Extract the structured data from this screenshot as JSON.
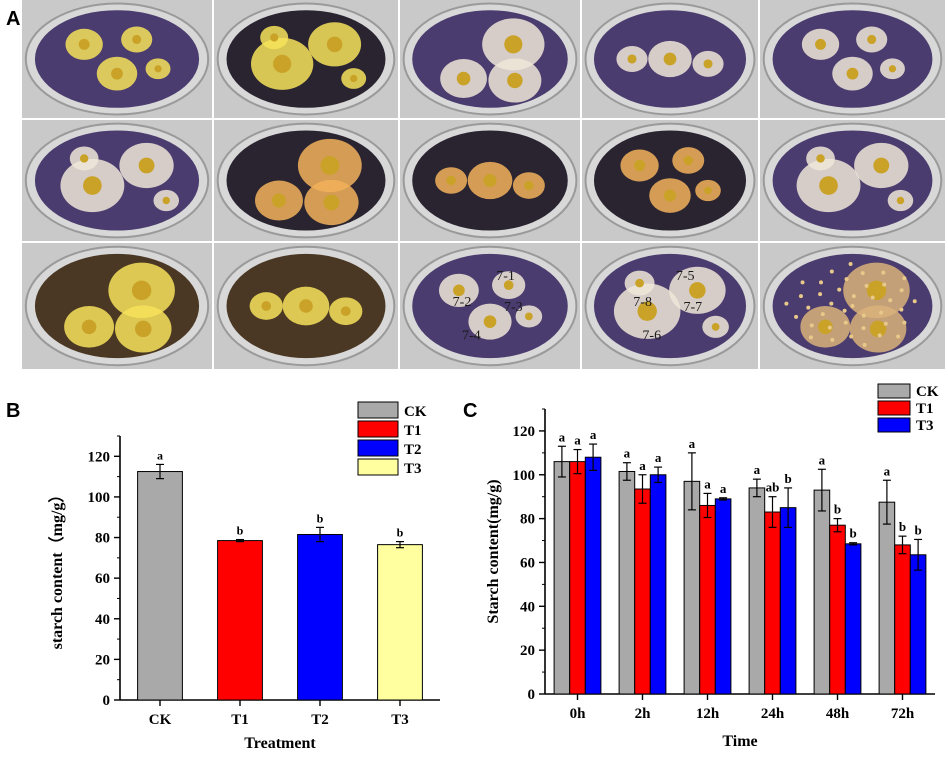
{
  "panels": {
    "a_label": "A",
    "b_label": "B",
    "c_label": "C"
  },
  "plate_photos": [
    {
      "row": 0,
      "col": 0,
      "medium": "purple",
      "halo": "yellow"
    },
    {
      "row": 0,
      "col": 1,
      "medium": "dark",
      "halo": "yellow"
    },
    {
      "row": 0,
      "col": 2,
      "medium": "purple",
      "halo": "pale"
    },
    {
      "row": 0,
      "col": 3,
      "medium": "purple",
      "halo": "pale"
    },
    {
      "row": 0,
      "col": 4,
      "medium": "purple",
      "halo": "pale"
    },
    {
      "row": 1,
      "col": 0,
      "medium": "purple",
      "halo": "pale"
    },
    {
      "row": 1,
      "col": 1,
      "medium": "dark",
      "halo": "orange"
    },
    {
      "row": 1,
      "col": 2,
      "medium": "dark",
      "halo": "orange"
    },
    {
      "row": 1,
      "col": 3,
      "medium": "dark",
      "halo": "orange"
    },
    {
      "row": 1,
      "col": 4,
      "medium": "purple",
      "halo": "pale"
    },
    {
      "row": 2,
      "col": 0,
      "medium": "brown",
      "halo": "yellow"
    },
    {
      "row": 2,
      "col": 1,
      "medium": "brown",
      "halo": "yellow"
    },
    {
      "row": 2,
      "col": 2,
      "medium": "purple",
      "halo": "pale",
      "labels": [
        "7-1",
        "7-2",
        "7-3",
        "7-4"
      ]
    },
    {
      "row": 2,
      "col": 3,
      "medium": "purple",
      "halo": "pale",
      "labels": [
        "7-5",
        "7-8",
        "7-7",
        "7-6"
      ]
    },
    {
      "row": 2,
      "col": 4,
      "medium": "purple",
      "halo": "tan"
    }
  ],
  "chart_data": [
    {
      "type": "bar",
      "panel": "B",
      "xlabel": "Treatment",
      "ylabel": "starch content（mg/g）",
      "ylim": [
        0,
        130
      ],
      "yticks": [
        0,
        20,
        40,
        60,
        80,
        100,
        120
      ],
      "categories": [
        "CK",
        "T1",
        "T2",
        "T3"
      ],
      "values": [
        112.5,
        78.5,
        81.5,
        76.5
      ],
      "errors": [
        3.5,
        0.5,
        3.5,
        1.5
      ],
      "letters": [
        "a",
        "b",
        "b",
        "b"
      ],
      "colors": [
        "#a9a9a9",
        "#ff0000",
        "#0000ff",
        "#ffffa0"
      ],
      "legend": [
        "CK",
        "T1",
        "T2",
        "T3"
      ],
      "legend_position": "top-right",
      "grid": false
    },
    {
      "type": "bar",
      "panel": "C",
      "xlabel": "Time",
      "ylabel": "Starch content(mg/g)",
      "ylim": [
        0,
        130
      ],
      "yticks": [
        0,
        20,
        40,
        60,
        80,
        100,
        120
      ],
      "categories": [
        "0h",
        "2h",
        "12h",
        "24h",
        "48h",
        "72h"
      ],
      "series": [
        {
          "name": "CK",
          "color": "#a9a9a9",
          "values": [
            106,
            101.5,
            97,
            94,
            93,
            87.5
          ],
          "errors": [
            7,
            4,
            13,
            4,
            9.5,
            10
          ],
          "letters": [
            "a",
            "a",
            "a",
            "a",
            "a",
            "a"
          ]
        },
        {
          "name": "T1",
          "color": "#ff0000",
          "values": [
            106,
            93.5,
            86,
            83,
            77,
            68
          ],
          "errors": [
            5.5,
            6.5,
            5.5,
            7,
            3,
            4
          ],
          "letters": [
            "a",
            "a",
            "a",
            "ab",
            "b",
            "b"
          ]
        },
        {
          "name": "T3",
          "color": "#0000ff",
          "values": [
            108,
            100,
            89,
            85,
            68.5,
            63.5
          ],
          "errors": [
            6,
            3.5,
            0.5,
            9,
            0.5,
            7
          ],
          "letters": [
            "a",
            "a",
            "a",
            "b",
            "b",
            "b"
          ]
        }
      ],
      "legend_position": "top-right",
      "grid": false
    }
  ]
}
